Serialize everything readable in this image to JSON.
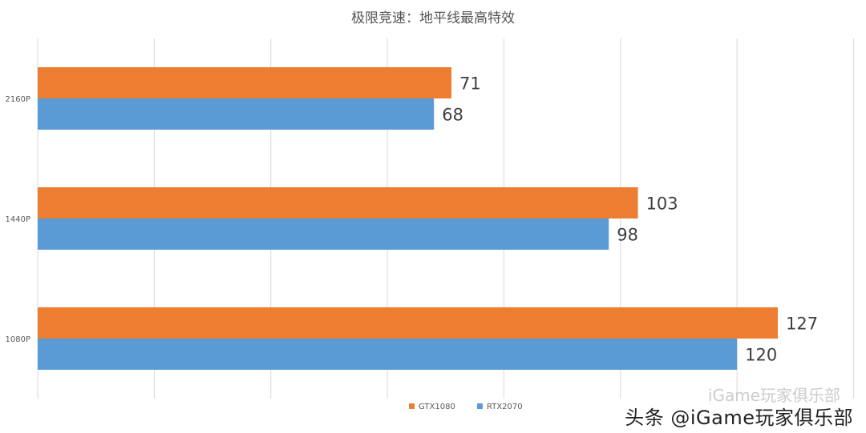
{
  "chart_data": {
    "type": "bar",
    "orientation": "horizontal",
    "title": "极限竞速：地平线最高特效",
    "categories": [
      "2160P",
      "1440P",
      "1080P"
    ],
    "series": [
      {
        "name": "GTX1080",
        "color": "#ED7D31",
        "values": [
          71,
          103,
          127
        ]
      },
      {
        "name": "RTX2070",
        "color": "#5B9BD5",
        "values": [
          68,
          98,
          120
        ]
      }
    ],
    "xlim": [
      0,
      140
    ],
    "grid": true,
    "legend_position": "bottom",
    "data_labels": true
  },
  "watermark": {
    "main": "头条 @iGame玩家俱乐部",
    "faint": "iGame玩家俱乐部"
  }
}
